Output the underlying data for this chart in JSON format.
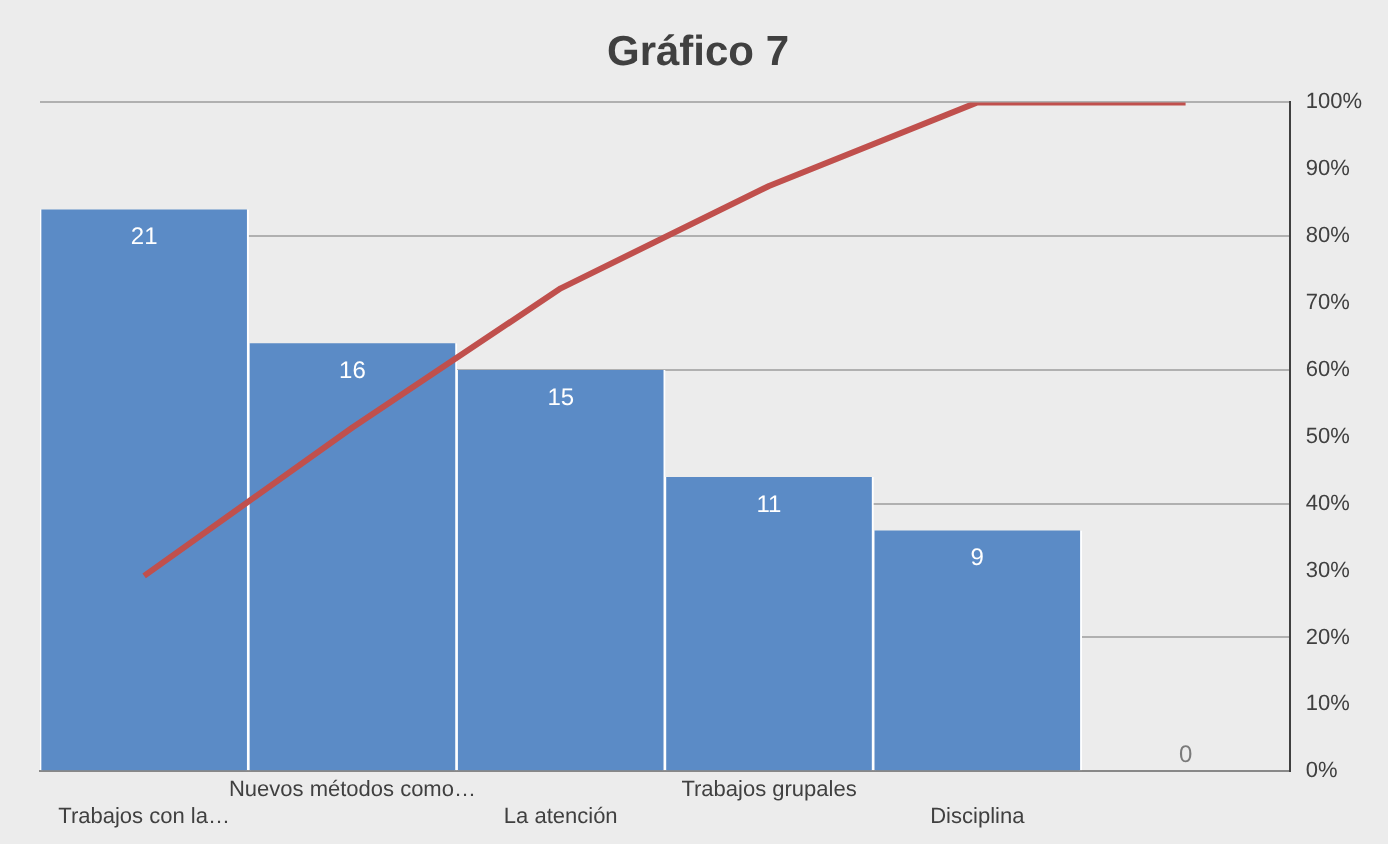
{
  "chart_data": {
    "type": "bar",
    "title": "Gráfico 7",
    "categories": [
      "Trabajos con la…",
      "Nuevos métodos como…",
      "La atención",
      "Trabajos grupales",
      "Disciplina",
      null
    ],
    "series": [
      {
        "color": "#5b8bc6",
        "values": [
          21,
          16,
          15,
          11,
          9,
          0
        ],
        "value_labels": [
          "21",
          "16",
          "15",
          "11",
          "9",
          "0"
        ]
      },
      {
        "type": "line",
        "axis": "y2",
        "color": "#c0504d",
        "values": [
          29.2,
          51.4,
          72.2,
          87.5,
          100,
          100
        ]
      }
    ],
    "ylim": [
      0,
      25
    ],
    "yticks": [
      {
        "value": 0,
        "label": null
      },
      {
        "value": 5,
        "label": null
      },
      {
        "value": 10,
        "label": null
      },
      {
        "value": 15,
        "label": null
      },
      {
        "value": 20,
        "label": null
      },
      {
        "value": 25,
        "label": null
      }
    ],
    "y2lim": [
      0,
      100
    ],
    "y2ticks": [
      {
        "value": 0,
        "label": "0%"
      },
      {
        "value": 10,
        "label": "10%"
      },
      {
        "value": 20,
        "label": "20%"
      },
      {
        "value": 30,
        "label": "30%"
      },
      {
        "value": 40,
        "label": "40%"
      },
      {
        "value": 50,
        "label": "50%"
      },
      {
        "value": 60,
        "label": "60%"
      },
      {
        "value": 70,
        "label": "70%"
      },
      {
        "value": 80,
        "label": "80%"
      },
      {
        "value": 90,
        "label": "90%"
      },
      {
        "value": 100,
        "label": "100%"
      }
    ],
    "grid": "y",
    "legend": false,
    "marker": "none"
  }
}
